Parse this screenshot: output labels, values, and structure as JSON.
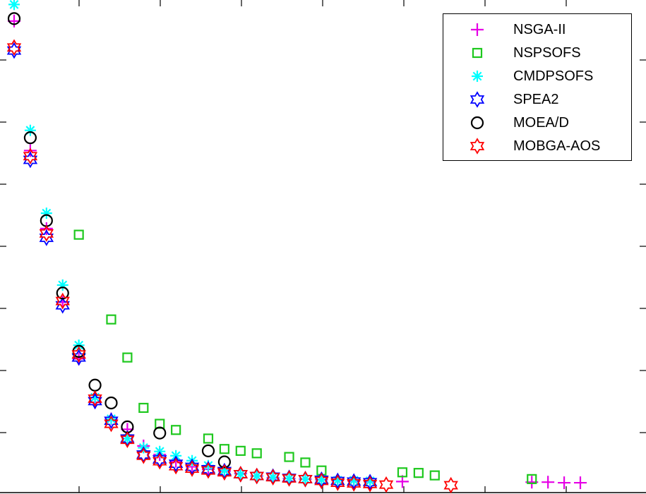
{
  "chart_data": {
    "type": "scatter",
    "title": "",
    "xlabel": "",
    "ylabel": "",
    "xlim": [
      0.5,
      40.0
    ],
    "ylim": [
      0.0,
      8.0
    ],
    "grid": false,
    "legend_position": "top-right",
    "series": [
      {
        "name": "NSGA-II",
        "marker": "plus",
        "color": "#e600e6",
        "x": [
          1,
          2,
          3,
          4,
          5,
          6,
          7,
          8,
          9,
          10,
          11,
          12,
          13,
          14,
          15,
          16,
          17,
          18,
          19,
          20,
          21,
          22,
          23,
          25,
          33,
          34,
          35,
          36
        ],
        "y": [
          7.68,
          5.57,
          4.3,
          3.1,
          2.18,
          1.47,
          1.2,
          1.03,
          0.76,
          0.62,
          0.51,
          0.42,
          0.38,
          0.35,
          0.31,
          0.27,
          0.24,
          0.23,
          0.22,
          0.21,
          0.2,
          0.19,
          0.18,
          0.18,
          0.17,
          0.17,
          0.16,
          0.16
        ]
      },
      {
        "name": "NSPSOFS",
        "marker": "square",
        "color": "#1ec81e",
        "x": [
          5,
          7,
          8,
          9,
          10,
          11,
          13,
          14,
          15,
          16,
          18,
          19,
          20,
          25,
          26,
          27,
          33
        ],
        "y": [
          4.2,
          2.82,
          2.2,
          1.38,
          1.12,
          1.02,
          0.88,
          0.71,
          0.68,
          0.64,
          0.58,
          0.49,
          0.36,
          0.33,
          0.32,
          0.28,
          0.22
        ]
      },
      {
        "name": "CMDPSOFS",
        "marker": "asterisk",
        "color": "#00ffff",
        "x": [
          1,
          2,
          3,
          4,
          5,
          6,
          7,
          8,
          9,
          10,
          11,
          12,
          13,
          14,
          15,
          16,
          17,
          18,
          19,
          20,
          21,
          22,
          23
        ],
        "y": [
          7.95,
          5.9,
          4.55,
          3.38,
          2.4,
          1.55,
          1.2,
          0.88,
          0.73,
          0.67,
          0.6,
          0.52,
          0.44,
          0.36,
          0.3,
          0.27,
          0.25,
          0.23,
          0.22,
          0.21,
          0.2,
          0.2,
          0.19
        ]
      },
      {
        "name": "SPEA2",
        "marker": "hexagram",
        "color": "#0000ff",
        "x": [
          1,
          2,
          3,
          4,
          5,
          6,
          7,
          8,
          9,
          10,
          11,
          12,
          13,
          14,
          15,
          16,
          17,
          18,
          19,
          20,
          21,
          22,
          23
        ],
        "y": [
          7.2,
          5.42,
          4.15,
          3.05,
          2.2,
          1.49,
          1.17,
          0.88,
          0.62,
          0.54,
          0.47,
          0.42,
          0.38,
          0.35,
          0.3,
          0.27,
          0.26,
          0.24,
          0.22,
          0.21,
          0.19,
          0.18,
          0.17
        ]
      },
      {
        "name": "MOEA/D",
        "marker": "circle",
        "color": "#000000",
        "x": [
          1,
          2,
          3,
          4,
          5,
          6,
          7,
          8,
          10,
          13,
          14
        ],
        "y": [
          7.72,
          5.78,
          4.43,
          3.25,
          2.3,
          1.75,
          1.46,
          1.07,
          0.97,
          0.68,
          0.5
        ]
      },
      {
        "name": "MOBGA-AOS",
        "marker": "hexagram",
        "color": "#ff0000",
        "x": [
          1,
          2,
          3,
          4,
          5,
          6,
          7,
          8,
          9,
          10,
          11,
          12,
          13,
          14,
          15,
          16,
          17,
          18,
          19,
          20,
          21,
          22,
          23,
          24,
          28
        ],
        "y": [
          7.25,
          5.48,
          4.22,
          3.12,
          2.25,
          1.53,
          1.12,
          0.86,
          0.6,
          0.51,
          0.43,
          0.39,
          0.36,
          0.33,
          0.3,
          0.27,
          0.25,
          0.23,
          0.22,
          0.19,
          0.16,
          0.15,
          0.14,
          0.13,
          0.12
        ]
      }
    ]
  }
}
